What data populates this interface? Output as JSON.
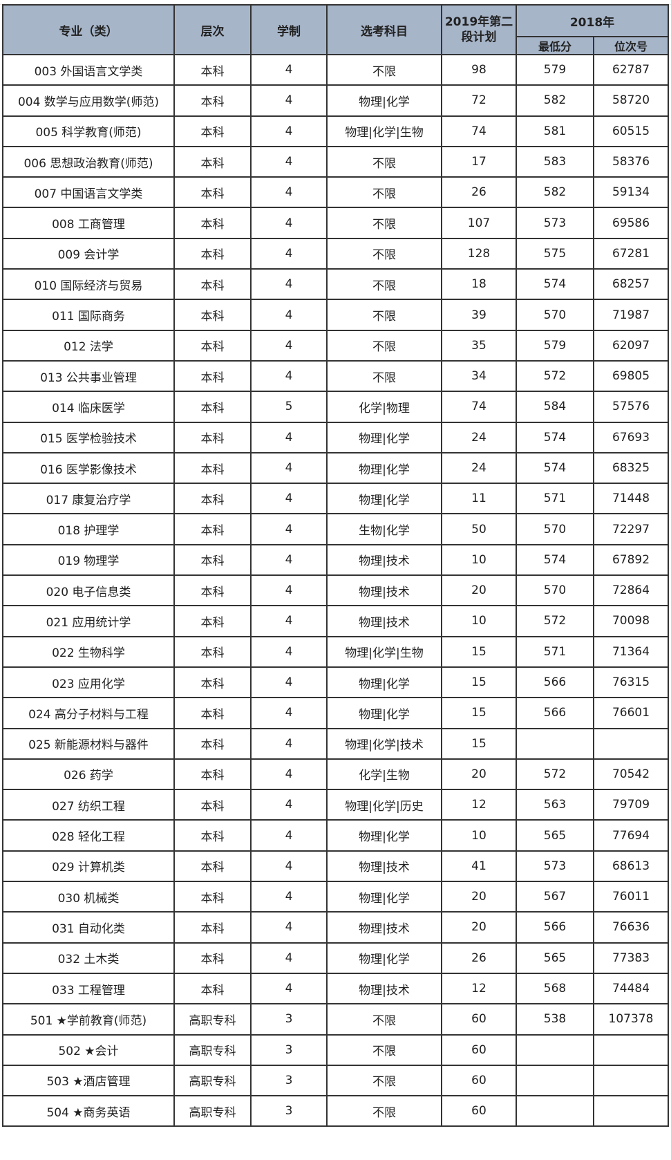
{
  "headers": {
    "major": "专业（类）",
    "level": "层次",
    "years": "学制",
    "subjects": "选考科目",
    "plan_2019": "2019年第二段计划",
    "year_2018": "2018年",
    "min_score": "最低分",
    "rank": "位次号"
  },
  "rows": [
    [
      "003 外国语言文学类",
      "本科",
      "4",
      "不限",
      "98",
      "579",
      "62787"
    ],
    [
      "004 数学与应用数学(师范)",
      "本科",
      "4",
      "物理|化学",
      "72",
      "582",
      "58720"
    ],
    [
      "005 科学教育(师范)",
      "本科",
      "4",
      "物理|化学|生物",
      "74",
      "581",
      "60515"
    ],
    [
      "006 思想政治教育(师范)",
      "本科",
      "4",
      "不限",
      "17",
      "583",
      "58376"
    ],
    [
      "007 中国语言文学类",
      "本科",
      "4",
      "不限",
      "26",
      "582",
      "59134"
    ],
    [
      "008 工商管理",
      "本科",
      "4",
      "不限",
      "107",
      "573",
      "69586"
    ],
    [
      "009 会计学",
      "本科",
      "4",
      "不限",
      "128",
      "575",
      "67281"
    ],
    [
      "010 国际经济与贸易",
      "本科",
      "4",
      "不限",
      "18",
      "574",
      "68257"
    ],
    [
      "011 国际商务",
      "本科",
      "4",
      "不限",
      "39",
      "570",
      "71987"
    ],
    [
      "012 法学",
      "本科",
      "4",
      "不限",
      "35",
      "579",
      "62097"
    ],
    [
      "013 公共事业管理",
      "本科",
      "4",
      "不限",
      "34",
      "572",
      "69805"
    ],
    [
      "014 临床医学",
      "本科",
      "5",
      "化学|物理",
      "74",
      "584",
      "57576"
    ],
    [
      "015 医学检验技术",
      "本科",
      "4",
      "物理|化学",
      "24",
      "574",
      "67693"
    ],
    [
      "016 医学影像技术",
      "本科",
      "4",
      "物理|化学",
      "24",
      "574",
      "68325"
    ],
    [
      "017 康复治疗学",
      "本科",
      "4",
      "物理|化学",
      "11",
      "571",
      "71448"
    ],
    [
      "018 护理学",
      "本科",
      "4",
      "生物|化学",
      "50",
      "570",
      "72297"
    ],
    [
      "019 物理学",
      "本科",
      "4",
      "物理|技术",
      "10",
      "574",
      "67892"
    ],
    [
      "020 电子信息类",
      "本科",
      "4",
      "物理|技术",
      "20",
      "570",
      "72864"
    ],
    [
      "021 应用统计学",
      "本科",
      "4",
      "物理|技术",
      "10",
      "572",
      "70098"
    ],
    [
      "022 生物科学",
      "本科",
      "4",
      "物理|化学|生物",
      "15",
      "571",
      "71364"
    ],
    [
      "023 应用化学",
      "本科",
      "4",
      "物理|化学",
      "15",
      "566",
      "76315"
    ],
    [
      "024 高分子材料与工程",
      "本科",
      "4",
      "物理|化学",
      "15",
      "566",
      "76601"
    ],
    [
      "025 新能源材料与器件",
      "本科",
      "4",
      "物理|化学|技术",
      "15",
      "",
      ""
    ],
    [
      "026 药学",
      "本科",
      "4",
      "化学|生物",
      "20",
      "572",
      "70542"
    ],
    [
      "027 纺织工程",
      "本科",
      "4",
      "物理|化学|历史",
      "12",
      "563",
      "79709"
    ],
    [
      "028 轻化工程",
      "本科",
      "4",
      "物理|化学",
      "10",
      "565",
      "77694"
    ],
    [
      "029 计算机类",
      "本科",
      "4",
      "物理|技术",
      "41",
      "573",
      "68613"
    ],
    [
      "030 机械类",
      "本科",
      "4",
      "物理|化学",
      "20",
      "567",
      "76011"
    ],
    [
      "031 自动化类",
      "本科",
      "4",
      "物理|技术",
      "20",
      "566",
      "76636"
    ],
    [
      "032 土木类",
      "本科",
      "4",
      "物理|化学",
      "26",
      "565",
      "77383"
    ],
    [
      "033 工程管理",
      "本科",
      "4",
      "物理|技术",
      "12",
      "568",
      "74484"
    ],
    [
      "501 ★学前教育(师范)",
      "高职专科",
      "3",
      "不限",
      "60",
      "538",
      "107378"
    ],
    [
      "502 ★会计",
      "高职专科",
      "3",
      "不限",
      "60",
      "",
      ""
    ],
    [
      "503 ★酒店管理",
      "高职专科",
      "3",
      "不限",
      "60",
      "",
      ""
    ],
    [
      "504 ★商务英语",
      "高职专科",
      "3",
      "不限",
      "60",
      "",
      ""
    ]
  ]
}
